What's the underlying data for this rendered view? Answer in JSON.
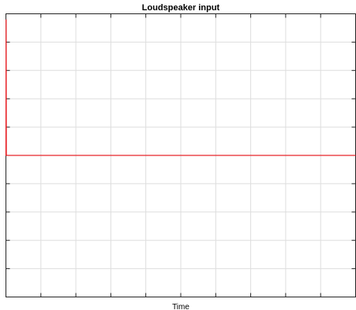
{
  "chart_data": {
    "type": "line",
    "title": "Loudspeaker input",
    "xlabel": "Time",
    "ylabel": "",
    "xlim": [
      0,
      10
    ],
    "ylim": [
      0,
      10
    ],
    "x_tick_count": 10,
    "y_tick_count": 10,
    "grid": true,
    "legend": "none",
    "series": [
      {
        "color": "#e8262b",
        "x": [
          0,
          0.005,
          0.012,
          0.03,
          0.05,
          0.5,
          2,
          4,
          6,
          8,
          10
        ],
        "y": [
          5,
          9.8,
          5,
          5,
          5,
          5,
          5,
          5,
          5,
          5,
          5
        ]
      }
    ]
  }
}
